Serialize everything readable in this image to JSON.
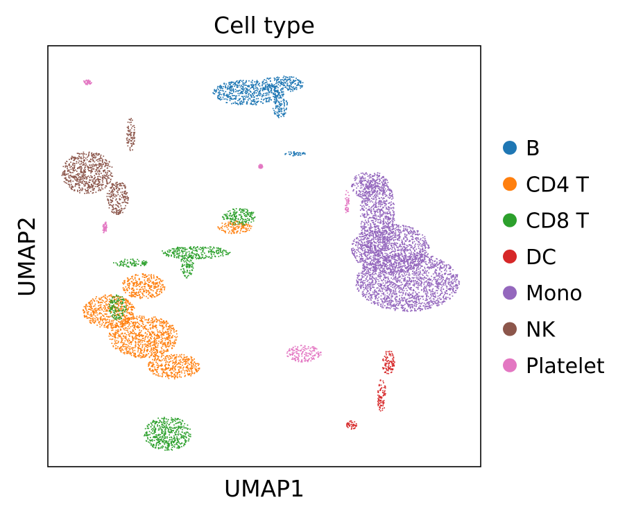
{
  "chart_data": {
    "type": "scatter",
    "title": "Cell type",
    "xlabel": "UMAP1",
    "ylabel": "UMAP2",
    "xlim": [
      0,
      100
    ],
    "ylim": [
      0,
      100
    ],
    "grid": false,
    "ticks": false,
    "legend_position": "right",
    "series": [
      {
        "name": "B",
        "color": "#1f77b4",
        "clusters": [
          {
            "cx": 46,
            "cy": 89,
            "rx": 8,
            "ry": 3
          },
          {
            "cx": 54,
            "cy": 91,
            "rx": 5,
            "ry": 2
          },
          {
            "cx": 53.5,
            "cy": 86,
            "rx": 1.8,
            "ry": 3
          },
          {
            "cx": 57,
            "cy": 74.5,
            "rx": 2.5,
            "ry": 0.5
          }
        ]
      },
      {
        "name": "CD4 T",
        "color": "#ff7f0e",
        "clusters": [
          {
            "cx": 14,
            "cy": 37,
            "rx": 6,
            "ry": 4
          },
          {
            "cx": 22,
            "cy": 31,
            "rx": 8,
            "ry": 5
          },
          {
            "cx": 29,
            "cy": 24,
            "rx": 6,
            "ry": 3
          },
          {
            "cx": 22,
            "cy": 43,
            "rx": 5,
            "ry": 3
          },
          {
            "cx": 43,
            "cy": 57,
            "rx": 4,
            "ry": 1.5
          }
        ]
      },
      {
        "name": "CD8 T",
        "color": "#2ca02c",
        "clusters": [
          {
            "cx": 27.5,
            "cy": 8,
            "rx": 5.5,
            "ry": 4
          },
          {
            "cx": 44,
            "cy": 59.5,
            "rx": 4,
            "ry": 2
          },
          {
            "cx": 34,
            "cy": 51,
            "rx": 8,
            "ry": 1.5
          },
          {
            "cx": 19,
            "cy": 48.5,
            "rx": 4,
            "ry": 1
          },
          {
            "cx": 16,
            "cy": 38,
            "rx": 2,
            "ry": 3
          },
          {
            "cx": 32,
            "cy": 48,
            "rx": 1.5,
            "ry": 3
          }
        ]
      },
      {
        "name": "DC",
        "color": "#d62728",
        "clusters": [
          {
            "cx": 78.5,
            "cy": 25,
            "rx": 1.5,
            "ry": 3
          },
          {
            "cx": 77,
            "cy": 17,
            "rx": 1,
            "ry": 4
          },
          {
            "cx": 70,
            "cy": 10,
            "rx": 1.2,
            "ry": 1
          }
        ]
      },
      {
        "name": "Mono",
        "color": "#9467bd",
        "clusters": [
          {
            "cx": 83,
            "cy": 44,
            "rx": 12,
            "ry": 7
          },
          {
            "cx": 76,
            "cy": 60,
            "rx": 4,
            "ry": 10
          },
          {
            "cx": 79,
            "cy": 52,
            "rx": 9,
            "ry": 6
          },
          {
            "cx": 73,
            "cy": 67,
            "rx": 3,
            "ry": 3
          }
        ]
      },
      {
        "name": "NK",
        "color": "#8c564b",
        "clusters": [
          {
            "cx": 9,
            "cy": 70,
            "rx": 6,
            "ry": 5
          },
          {
            "cx": 16,
            "cy": 64,
            "rx": 2.5,
            "ry": 4
          },
          {
            "cx": 19,
            "cy": 79,
            "rx": 1,
            "ry": 4
          }
        ]
      },
      {
        "name": "Platelet",
        "color": "#e377c2",
        "clusters": [
          {
            "cx": 59,
            "cy": 27,
            "rx": 4,
            "ry": 2
          },
          {
            "cx": 9,
            "cy": 91.5,
            "rx": 1,
            "ry": 0.6
          },
          {
            "cx": 13,
            "cy": 57,
            "rx": 0.5,
            "ry": 1.5
          },
          {
            "cx": 49,
            "cy": 71.5,
            "rx": 0.5,
            "ry": 0.5
          },
          {
            "cx": 69,
            "cy": 63,
            "rx": 0.5,
            "ry": 3
          }
        ]
      }
    ]
  }
}
